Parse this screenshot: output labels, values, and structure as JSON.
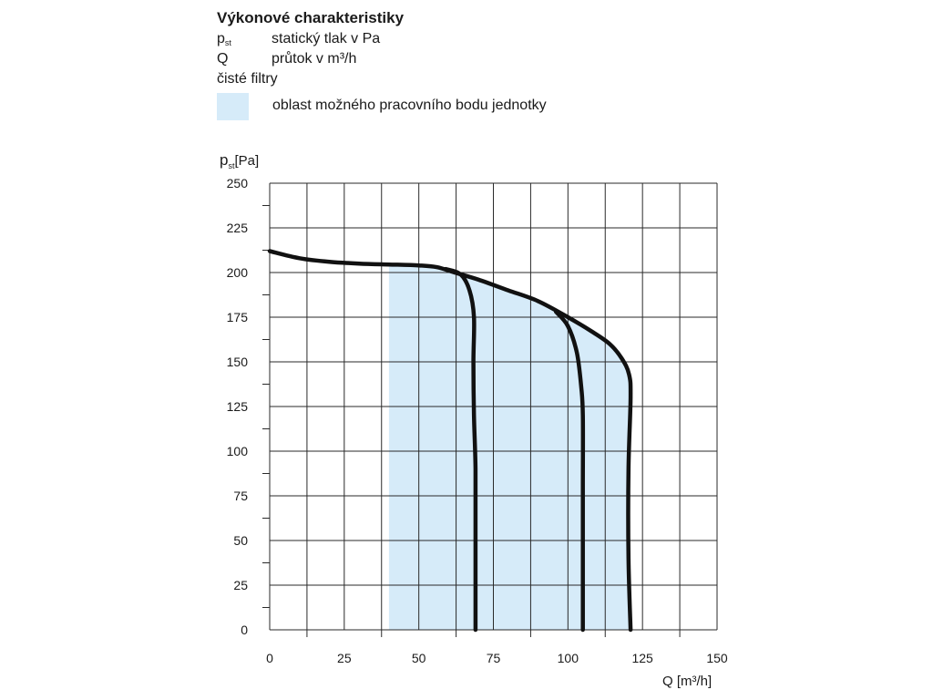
{
  "legend": {
    "title": "Výkonové charakteristiky",
    "rows": [
      {
        "symbol_main": "p",
        "symbol_sub": "st",
        "desc": "statický tlak v Pa"
      },
      {
        "symbol_main": "Q",
        "symbol_sub": "",
        "desc": "průtok v m³/h"
      }
    ],
    "note": "čisté filtry",
    "area_label": "oblast možného pracovního bodu jednotky"
  },
  "chart_data": {
    "type": "line",
    "title": "Výkonové charakteristiky",
    "xlabel": "Q [m³/h]",
    "ylabel_main": "p",
    "ylabel_sub": "st",
    "ylabel_unit": "[Pa]",
    "xlim": [
      0,
      150
    ],
    "ylim": [
      0,
      250
    ],
    "x_ticks": [
      0,
      25,
      50,
      75,
      100,
      125,
      150
    ],
    "x_tick_labels": [
      "0",
      "25",
      "50",
      "75",
      "100",
      "125",
      "150"
    ],
    "y_ticks": [
      0,
      25,
      50,
      75,
      100,
      125,
      150,
      175,
      200,
      225,
      250
    ],
    "y_tick_labels": [
      "0",
      "25",
      "50",
      "75",
      "100",
      "125",
      "150",
      "175",
      "200",
      "225",
      "250"
    ],
    "x_grid_step": 12.5,
    "y_minor_step": 12.5,
    "grid": true,
    "region": {
      "name": "oblast možného pracovního bodu jednotky",
      "color": "#d6ebf9",
      "polygon": [
        [
          40,
          0
        ],
        [
          40,
          204.5
        ],
        [
          50,
          204
        ],
        [
          56,
          203
        ],
        [
          62,
          200
        ],
        [
          70,
          196
        ],
        [
          80,
          190
        ],
        [
          90,
          184
        ],
        [
          100,
          175
        ],
        [
          108,
          167
        ],
        [
          114,
          160
        ],
        [
          118,
          152
        ],
        [
          120.5,
          143
        ],
        [
          121,
          130
        ],
        [
          120.3,
          90
        ],
        [
          120.3,
          40
        ],
        [
          121,
          0
        ]
      ]
    },
    "series": [
      {
        "values": [
          [
            0,
            212
          ],
          [
            10,
            208
          ],
          [
            20,
            206
          ],
          [
            30,
            205
          ],
          [
            40,
            204.5
          ],
          [
            50,
            204
          ],
          [
            56,
            203
          ],
          [
            62,
            200
          ],
          [
            70,
            196
          ],
          [
            80,
            190
          ],
          [
            90,
            184
          ],
          [
            100,
            175
          ],
          [
            108,
            167
          ],
          [
            114,
            160
          ],
          [
            118,
            152
          ],
          [
            120.5,
            143
          ],
          [
            121,
            130
          ],
          [
            120.3,
            90
          ],
          [
            120.3,
            40
          ],
          [
            121,
            0
          ]
        ]
      },
      {
        "values": [
          [
            59,
            202
          ],
          [
            64,
            199
          ],
          [
            67,
            190
          ],
          [
            68.5,
            175
          ],
          [
            68.3,
            150
          ],
          [
            68.5,
            120
          ],
          [
            69,
            90
          ],
          [
            69,
            50
          ],
          [
            69,
            0
          ]
        ]
      },
      {
        "values": [
          [
            96,
            178
          ],
          [
            100,
            170
          ],
          [
            103,
            155
          ],
          [
            104.5,
            135
          ],
          [
            105,
            120
          ],
          [
            105,
            80
          ],
          [
            105,
            40
          ],
          [
            105,
            0
          ]
        ]
      }
    ]
  }
}
